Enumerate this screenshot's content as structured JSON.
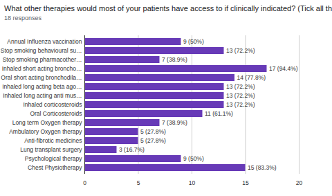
{
  "chart_data": {
    "type": "bar",
    "title": "What other therapies would most of your patients have access to if clinically indicated? (Tick all that apply)",
    "subtitle": "18 responses",
    "orientation": "horizontal",
    "categories": [
      "Annual Influenza vaccination",
      "Stop smoking behavioural su…",
      "Stop smoking pharmacother…",
      "Inhaled short acting broncho…",
      "Oral short acting bronchodila…",
      "Inhaled long acting beta ago…",
      "Inhaled long acting anti mus…",
      "Inhaled corticosteroids",
      "Oral Corticosteroids",
      "Long term Oxygen therapy",
      "Ambulatory Oxygen therapy",
      "Anti-fibrotic medicines",
      "Lung transplant surgery",
      "Psychological therapy",
      "Chest Physiotherapy"
    ],
    "values": [
      9,
      13,
      7,
      17,
      14,
      13,
      13,
      13,
      11,
      7,
      5,
      5,
      3,
      9,
      15
    ],
    "value_labels": [
      "9 (50%)",
      "13 (72.2%)",
      "7 (38.9%)",
      "17 (94.4%)",
      "14 (77.8%)",
      "13 (72.2%)",
      "13 (72.2%)",
      "13 (72.2%)",
      "11 (61.1%)",
      "7 (38.9%)",
      "5 (27.8%)",
      "5 (27.8%)",
      "3 (16.7%)",
      "9 (50%)",
      "15 (83.3%)"
    ],
    "color": "#673ab7",
    "xlim": [
      0,
      20
    ],
    "xticks": [
      0,
      5,
      10,
      15,
      20
    ],
    "grid": true,
    "data_labels": true
  }
}
